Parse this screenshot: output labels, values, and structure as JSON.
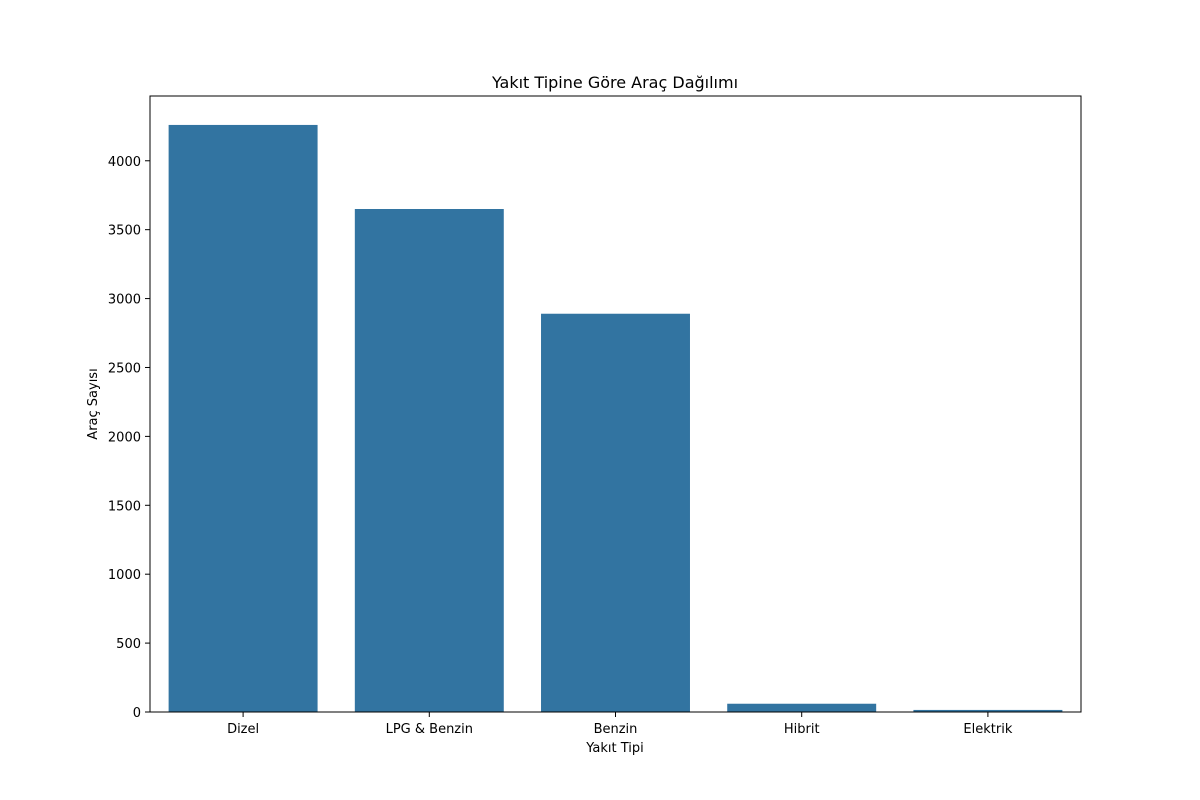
{
  "chart_data": {
    "type": "bar",
    "title": "Yakıt Tipine Göre Araç Dağılımı",
    "xlabel": "Yakıt Tipi",
    "ylabel": "Araç Sayısı",
    "categories": [
      "Dizel",
      "LPG & Benzin",
      "Benzin",
      "Hibrit",
      "Elektrik"
    ],
    "values": [
      4260,
      3650,
      2890,
      60,
      15
    ],
    "ylim": [
      0,
      4470
    ],
    "yticks": [
      0,
      500,
      1000,
      1500,
      2000,
      2500,
      3000,
      3500,
      4000
    ],
    "bar_color": "#3274a1",
    "grid": false,
    "legend": "none"
  }
}
